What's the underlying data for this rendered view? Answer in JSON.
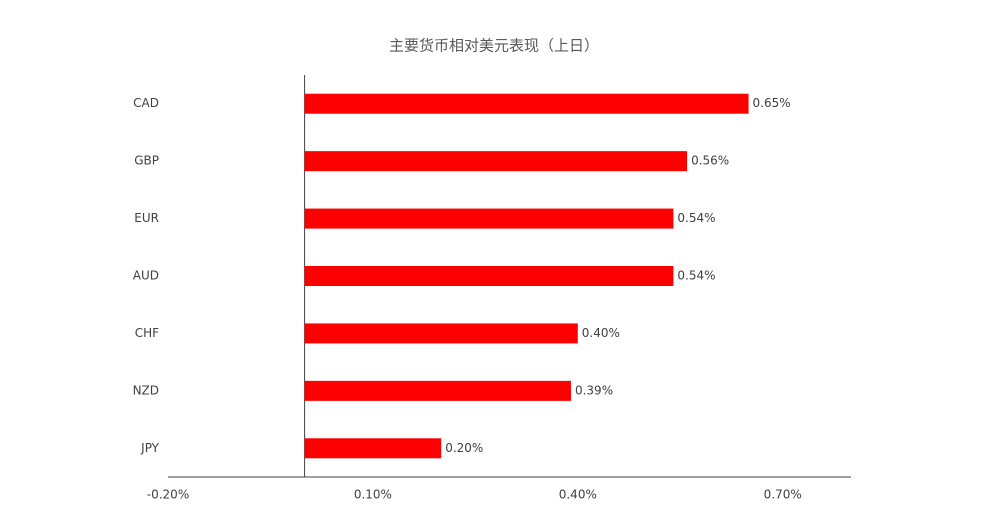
{
  "chart_data": {
    "type": "barh",
    "title": "主要货币相对美元表现（上日）",
    "categories": [
      "CAD",
      "GBP",
      "EUR",
      "AUD",
      "CHF",
      "NZD",
      "JPY"
    ],
    "values": [
      0.65,
      0.56,
      0.54,
      0.54,
      0.4,
      0.39,
      0.2
    ],
    "value_labels": [
      "0.65%",
      "0.56%",
      "0.54%",
      "0.54%",
      "0.40%",
      "0.39%",
      "0.20%"
    ],
    "color": "#ff0000",
    "xlim": [
      -0.2,
      0.8
    ],
    "xticks": [
      {
        "value": -0.2,
        "label": "-0.20%"
      },
      {
        "value": 0.1,
        "label": "0.10%"
      },
      {
        "value": 0.4,
        "label": "0.40%"
      },
      {
        "value": 0.7,
        "label": "0.70%"
      }
    ],
    "grid": false
  }
}
